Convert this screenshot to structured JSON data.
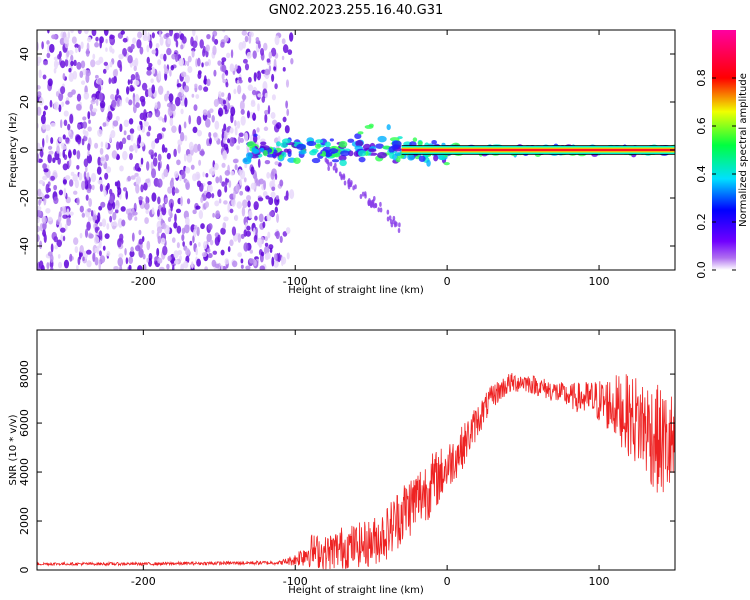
{
  "title": "GN02.2023.255.16.40.G31",
  "chart_data": [
    {
      "type": "heatmap",
      "xlabel": "Height of straight line (km)",
      "ylabel": "Frequency (Hz)",
      "xlim": [
        -270,
        150
      ],
      "ylim": [
        -50,
        50
      ],
      "x_ticks": [
        -200,
        -100,
        0,
        100
      ],
      "x_tick_labels": [
        "-200",
        "-100",
        "0",
        "100"
      ],
      "y_ticks": [
        -40,
        -20,
        0,
        20,
        40
      ],
      "y_tick_labels": [
        "-40",
        "-20",
        "0",
        "20",
        "40"
      ],
      "colorbar": {
        "label": "Normalized spectral amplitude",
        "range": [
          0,
          1
        ],
        "ticks": [
          0.0,
          0.2,
          0.4,
          0.6,
          0.8
        ],
        "tick_labels": [
          "0.0",
          "0.2",
          "0.4",
          "0.6",
          "0.8"
        ],
        "colormap": "rainbow (white → violet → blue → cyan → green → yellow → red → magenta)"
      },
      "features": {
        "noise_region_x": [
          -270,
          -110
        ],
        "signal_start_x": -133,
        "signal_freq_hz": 0
      }
    },
    {
      "type": "line",
      "xlabel": "Height of straight line (km)",
      "ylabel": "SNR (10 * v/v)",
      "xlim": [
        -270,
        150
      ],
      "ylim": [
        0,
        9800
      ],
      "x_ticks": [
        -200,
        -100,
        0,
        100
      ],
      "x_tick_labels": [
        "-200",
        "-100",
        "0",
        "100"
      ],
      "y_ticks": [
        0,
        2000,
        4000,
        6000,
        8000
      ],
      "y_tick_labels": [
        "0",
        "2000",
        "4000",
        "6000",
        "8000"
      ],
      "color": "#ee2222",
      "x": [
        -270,
        -200,
        -110,
        -100,
        -90,
        -80,
        -70,
        -60,
        -50,
        -40,
        -30,
        -20,
        -10,
        0,
        10,
        20,
        30,
        40,
        50,
        60,
        70,
        80,
        90,
        100,
        110,
        120,
        130,
        140,
        150
      ],
      "y": [
        250,
        250,
        300,
        420,
        800,
        700,
        900,
        1000,
        1100,
        1500,
        2300,
        2900,
        3500,
        4200,
        5000,
        6100,
        7100,
        7600,
        7700,
        7500,
        7300,
        7100,
        7000,
        6900,
        6700,
        6300,
        5900,
        5200,
        5000
      ],
      "noise_amplitude": [
        60,
        60,
        80,
        250,
        700,
        700,
        900,
        900,
        1000,
        1100,
        1300,
        1300,
        1300,
        1000,
        900,
        700,
        500,
        450,
        400,
        400,
        450,
        500,
        700,
        900,
        1300,
        1700,
        2100,
        2300,
        2300
      ]
    }
  ]
}
